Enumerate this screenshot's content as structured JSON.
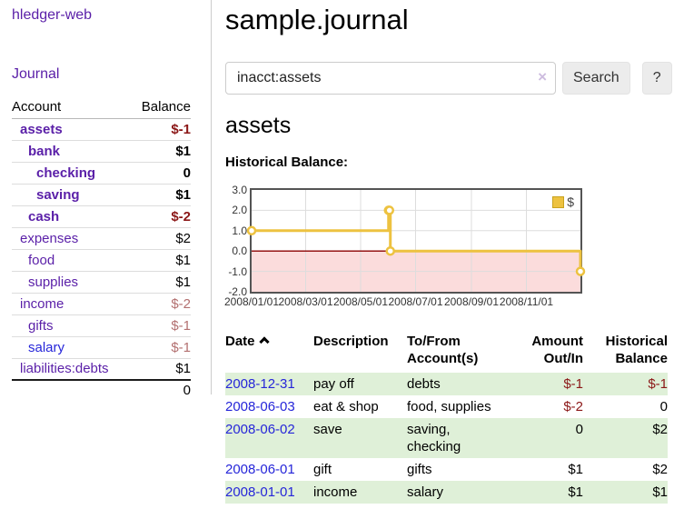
{
  "app": {
    "brand": "hledger-web"
  },
  "sidebar": {
    "nav": [
      {
        "label": "Journal"
      }
    ],
    "accounts": {
      "headers": {
        "account": "Account",
        "balance": "Balance"
      },
      "rows": [
        {
          "name": "assets",
          "balance": "$-1",
          "depth": 1,
          "bold": true,
          "dimmed": false,
          "link": "visited"
        },
        {
          "name": "bank",
          "balance": "$1",
          "depth": 2,
          "bold": true,
          "dimmed": false,
          "link": "visited"
        },
        {
          "name": "checking",
          "balance": "0",
          "depth": 3,
          "bold": true,
          "dimmed": false,
          "link": "visited"
        },
        {
          "name": "saving",
          "balance": "$1",
          "depth": 3,
          "bold": true,
          "dimmed": false,
          "link": "visited"
        },
        {
          "name": "cash",
          "balance": "$-2",
          "depth": 2,
          "bold": true,
          "dimmed": false,
          "link": "visited"
        },
        {
          "name": "expenses",
          "balance": "$2",
          "depth": 1,
          "bold": false,
          "dimmed": false,
          "link": "visited"
        },
        {
          "name": "food",
          "balance": "$1",
          "depth": 2,
          "bold": false,
          "dimmed": false,
          "link": "visited"
        },
        {
          "name": "supplies",
          "balance": "$1",
          "depth": 2,
          "bold": false,
          "dimmed": false,
          "link": "visited"
        },
        {
          "name": "income",
          "balance": "$-2",
          "depth": 1,
          "bold": false,
          "dimmed": true,
          "link": "visited"
        },
        {
          "name": "gifts",
          "balance": "$-1",
          "depth": 2,
          "bold": false,
          "dimmed": true,
          "link": "visited"
        },
        {
          "name": "salary",
          "balance": "$-1",
          "depth": 2,
          "bold": false,
          "dimmed": true,
          "link": "unvisited"
        },
        {
          "name": "liabilities:debts",
          "balance": "$1",
          "depth": 1,
          "bold": false,
          "dimmed": false,
          "link": "visited"
        }
      ],
      "total": "0"
    }
  },
  "main": {
    "title": "sample.journal",
    "search": {
      "value": "inacct:assets",
      "clear_icon": "×",
      "search_button": "Search",
      "help_button": "?"
    },
    "heading": "assets",
    "chart_title": "Historical Balance:",
    "register": {
      "headers": {
        "date": "Date",
        "sort_indicator": "chevron-up",
        "description": "Description",
        "accounts": "To/From Account(s)",
        "amount": "Amount Out/In",
        "balance": "Historical Balance"
      },
      "rows": [
        {
          "date": "2008-12-31",
          "description": "pay off",
          "accounts": "debts",
          "amount": "$-1",
          "balance": "$-1"
        },
        {
          "date": "2008-06-03",
          "description": "eat & shop",
          "accounts": "food, supplies",
          "amount": "$-2",
          "balance": "0"
        },
        {
          "date": "2008-06-02",
          "description": "save",
          "accounts": "saving,\nchecking",
          "amount": "0",
          "balance": "$2"
        },
        {
          "date": "2008-06-01",
          "description": "gift",
          "accounts": "gifts",
          "amount": "$1",
          "balance": "$2"
        },
        {
          "date": "2008-01-01",
          "description": "income",
          "accounts": "salary",
          "amount": "$1",
          "balance": "$1"
        }
      ]
    }
  },
  "chart_data": {
    "type": "line",
    "title": "Historical Balance:",
    "step": true,
    "series": [
      {
        "name": "$",
        "points": [
          [
            "2008-01-01",
            1
          ],
          [
            "2008-06-01",
            2
          ],
          [
            "2008-06-02",
            2
          ],
          [
            "2008-06-03",
            0
          ],
          [
            "2008-12-31",
            -1
          ]
        ]
      }
    ],
    "x_range": [
      "2008-01-01",
      "2008-12-31"
    ],
    "xticks": [
      "2008/01/01",
      "2008/03/01",
      "2008/05/01",
      "2008/07/01",
      "2008/09/01",
      "2008/11/01"
    ],
    "ytick_labels": [
      "3.0",
      "2.0",
      "1.0",
      "0.0",
      "-1.0",
      "-2.0"
    ],
    "ylim": [
      -2,
      3
    ],
    "legend": {
      "label": "$",
      "position": "top-right"
    },
    "colors": {
      "line": "#edc240",
      "negative_region": "#fbdcdc",
      "zero_line": "#8b0000",
      "grid": "#dddddd",
      "border": "#545454"
    }
  }
}
